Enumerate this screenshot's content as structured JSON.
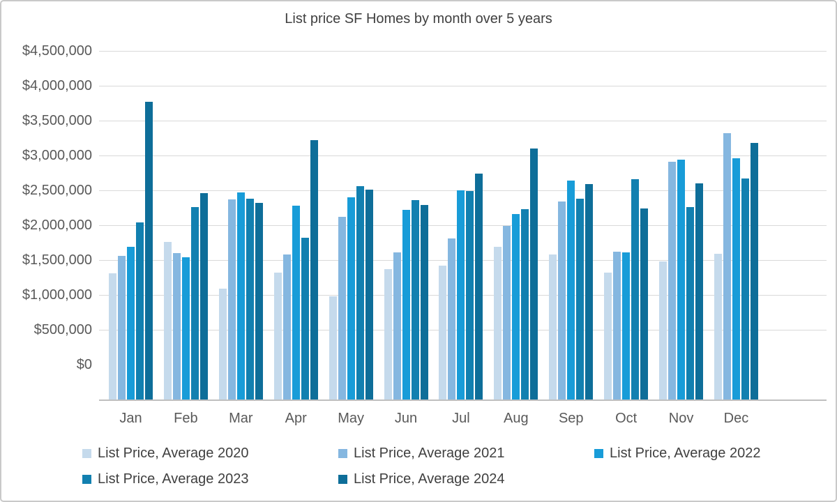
{
  "chart_data": {
    "type": "bar",
    "title": "List price SF Homes by month over 5 years",
    "xlabel": "",
    "ylabel": "",
    "categories": [
      "Jan",
      "Feb",
      "Mar",
      "Apr",
      "May",
      "Jun",
      "Jul",
      "Aug",
      "Sep",
      "Oct",
      "Nov",
      "Dec"
    ],
    "series": [
      {
        "name": "List Price, Average 2020",
        "color": "#C5DAEC",
        "values": [
          1630000,
          2030000,
          1430000,
          1640000,
          1330000,
          1680000,
          1730000,
          1970000,
          1870000,
          1640000,
          1780000,
          1880000
        ]
      },
      {
        "name": "List Price, Average 2021",
        "color": "#85B7E0",
        "values": [
          1850000,
          1890000,
          2580000,
          1870000,
          2360000,
          1900000,
          2080000,
          2240000,
          2560000,
          1910000,
          3070000,
          3440000
        ]
      },
      {
        "name": "List Price, Average 2022",
        "color": "#189CD8",
        "values": [
          1970000,
          1840000,
          2670000,
          2500000,
          2610000,
          2450000,
          2700000,
          2390000,
          2830000,
          1900000,
          3100000,
          3110000
        ]
      },
      {
        "name": "List Price, Average 2023",
        "color": "#1280B0",
        "values": [
          2290000,
          2480000,
          2590000,
          2090000,
          2750000,
          2570000,
          2690000,
          2460000,
          2590000,
          2840000,
          2480000,
          2850000
        ]
      },
      {
        "name": "List Price, Average 2024",
        "color": "#0E6E99",
        "values": [
          3840000,
          2660000,
          2540000,
          3350000,
          2710000,
          2510000,
          2920000,
          3240000,
          2780000,
          2470000,
          2790000,
          3310000
        ]
      }
    ],
    "y_ticks": [
      "$4,500,000",
      "$4,000,000",
      "$3,500,000",
      "$3,000,000",
      "$2,500,000",
      "$2,000,000",
      "$1,500,000",
      "$1,000,000",
      "$500,000",
      "$0"
    ],
    "ylim": [
      0,
      4500000
    ],
    "grid": true,
    "legend_position": "bottom"
  },
  "colors": {
    "background": "#FFFFFF",
    "border": "#C9C9C9",
    "grid": "#D9D9D9",
    "axis_line": "#BFBFBF",
    "tick_text": "#595959",
    "title_text": "#404040",
    "legend_text": "#404040"
  }
}
